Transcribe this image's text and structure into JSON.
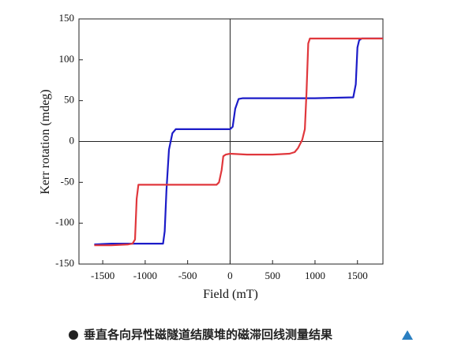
{
  "chart_data": {
    "type": "line",
    "xlabel": "Field (mT)",
    "ylabel": "Kerr rotation (mdeg)",
    "xlim": [
      -1780,
      1800
    ],
    "ylim": [
      -150,
      150
    ],
    "xticks": [
      -1500,
      -1000,
      -500,
      0,
      500,
      1000,
      1500
    ],
    "yticks": [
      -150,
      -100,
      -50,
      0,
      50,
      100,
      150
    ],
    "series": [
      {
        "color": "#1c1cc8",
        "x": [
          -1600,
          -1400,
          -1000,
          -790,
          -770,
          -750,
          -720,
          -680,
          -640,
          -600,
          -400,
          -200,
          0,
          30,
          60,
          100,
          150,
          500,
          1000,
          1450,
          1480,
          1500,
          1520,
          1550,
          1600,
          1800
        ],
        "values": [
          -126,
          -125,
          -125,
          -125,
          -110,
          -60,
          -10,
          10,
          15,
          15,
          15,
          15,
          15,
          18,
          40,
          52,
          53,
          53,
          53,
          54,
          70,
          115,
          124,
          126,
          126,
          126
        ]
      },
      {
        "color": "#e0373c",
        "x": [
          1800,
          1600,
          1400,
          1000,
          940,
          920,
          900,
          880,
          850,
          800,
          760,
          700,
          500,
          200,
          0,
          -50,
          -80,
          -100,
          -130,
          -160,
          -300,
          -600,
          -1000,
          -1080,
          -1100,
          -1120,
          -1150,
          -1200,
          -1400,
          -1600
        ],
        "values": [
          126,
          126,
          126,
          126,
          126,
          120,
          60,
          15,
          2,
          -8,
          -13,
          -15,
          -16,
          -16,
          -15,
          -16,
          -18,
          -35,
          -50,
          -53,
          -53,
          -53,
          -53,
          -53,
          -70,
          -120,
          -125,
          -126,
          -127,
          -127
        ]
      }
    ]
  },
  "caption": "垂直各向异性磁隧道结膜堆的磁滞回线测量结果"
}
